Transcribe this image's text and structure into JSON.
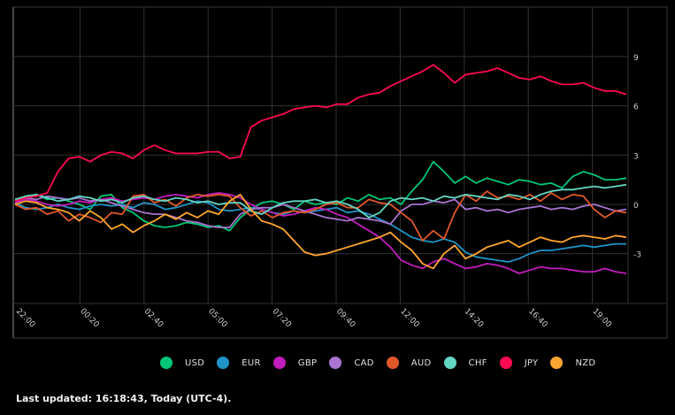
{
  "footer": {
    "last_updated": "Last updated: 16:18:43, Today (UTC-4)."
  },
  "legend": [
    {
      "label": "USD",
      "color": "#00c878"
    },
    {
      "label": "EUR",
      "color": "#1f93c6"
    },
    {
      "label": "GBP",
      "color": "#c21cbc"
    },
    {
      "label": "CAD",
      "color": "#a874d0"
    },
    {
      "label": "AUD",
      "color": "#e0582a"
    },
    {
      "label": "CHF",
      "color": "#63d6c4"
    },
    {
      "label": "JPY",
      "color": "#ff0a50"
    },
    {
      "label": "NZD",
      "color": "#ffa630"
    }
  ],
  "chart_data": {
    "type": "line",
    "title": "",
    "xlabel": "",
    "ylabel": "",
    "x_ticks": [
      "22:00",
      "00:20",
      "02:40",
      "05:00",
      "07:20",
      "09:40",
      "12:00",
      "14:20",
      "16:40",
      "19:00"
    ],
    "y_ticks": [
      9,
      6,
      3,
      0,
      -3
    ],
    "ylim": [
      -6,
      12
    ],
    "grid": true,
    "legend_position": "bottom",
    "x_points": 58,
    "series": [
      {
        "name": "JPY",
        "color": "#ff0a50",
        "values": [
          0.2,
          0.4,
          0.5,
          0.7,
          2.0,
          2.8,
          2.9,
          2.6,
          3.0,
          3.2,
          3.1,
          2.8,
          3.3,
          3.6,
          3.3,
          3.1,
          3.1,
          3.1,
          3.2,
          3.2,
          2.8,
          2.9,
          4.7,
          5.1,
          5.3,
          5.5,
          5.8,
          5.9,
          6.0,
          5.9,
          6.1,
          6.1,
          6.5,
          6.7,
          6.8,
          7.2,
          7.5,
          7.8,
          8.1,
          8.5,
          8.0,
          7.4,
          7.9,
          8.0,
          8.1,
          8.3,
          8.0,
          7.7,
          7.6,
          7.8,
          7.5,
          7.3,
          7.3,
          7.4,
          7.1,
          6.9,
          6.9,
          6.7
        ]
      },
      {
        "name": "USD",
        "color": "#00c878",
        "values": [
          0.2,
          0.5,
          0.6,
          0.3,
          0.4,
          0.2,
          0.0,
          -0.3,
          0.5,
          0.6,
          -0.2,
          -0.5,
          -1.0,
          -1.3,
          -1.4,
          -1.3,
          -1.1,
          -1.2,
          -1.4,
          -1.3,
          -1.6,
          -0.8,
          -0.3,
          0.1,
          0.2,
          0.0,
          -0.3,
          0.2,
          0.0,
          0.1,
          0.0,
          0.4,
          0.2,
          0.6,
          0.3,
          0.4,
          0.0,
          0.8,
          1.5,
          2.6,
          2.0,
          1.3,
          1.7,
          1.3,
          1.6,
          1.4,
          1.2,
          1.5,
          1.4,
          1.2,
          1.3,
          1.0,
          1.7,
          2.0,
          1.8,
          1.5,
          1.5,
          1.6
        ]
      },
      {
        "name": "EUR",
        "color": "#1f93c6",
        "values": [
          0.1,
          -0.2,
          -0.3,
          -0.2,
          0.0,
          -0.2,
          -0.3,
          -0.1,
          0.0,
          -0.1,
          0.0,
          -0.2,
          0.1,
          0.0,
          -0.3,
          -0.2,
          0.0,
          0.2,
          0.1,
          -0.3,
          -0.4,
          -0.3,
          -0.2,
          -0.3,
          -0.5,
          -0.6,
          -0.4,
          -0.5,
          -0.4,
          -0.3,
          -0.2,
          -0.5,
          -0.4,
          -0.6,
          -0.9,
          -1.2,
          -1.6,
          -2.0,
          -2.2,
          -2.3,
          -2.1,
          -2.3,
          -2.9,
          -3.2,
          -3.3,
          -3.4,
          -3.5,
          -3.3,
          -3.0,
          -2.8,
          -2.8,
          -2.7,
          -2.6,
          -2.5,
          -2.6,
          -2.5,
          -2.4,
          -2.4
        ]
      },
      {
        "name": "GBP",
        "color": "#c21cbc",
        "values": [
          0.1,
          0.3,
          0.2,
          0.0,
          -0.1,
          0.0,
          0.2,
          0.1,
          0.3,
          0.4,
          0.2,
          0.3,
          0.4,
          0.3,
          0.5,
          0.6,
          0.5,
          0.4,
          0.6,
          0.7,
          0.6,
          0.4,
          0.0,
          -0.3,
          -0.5,
          -0.7,
          -0.6,
          -0.4,
          -0.2,
          -0.3,
          -0.6,
          -0.8,
          -1.2,
          -1.6,
          -2.0,
          -2.6,
          -3.4,
          -3.7,
          -3.9,
          -3.5,
          -3.3,
          -3.6,
          -3.9,
          -3.8,
          -3.6,
          -3.7,
          -3.9,
          -4.2,
          -4.0,
          -3.8,
          -3.9,
          -3.9,
          -4.0,
          -4.1,
          -4.1,
          -3.9,
          -4.1,
          -4.2
        ]
      },
      {
        "name": "CAD",
        "color": "#a874d0",
        "values": [
          0.2,
          0.4,
          0.3,
          0.5,
          0.4,
          0.3,
          0.4,
          0.2,
          0.3,
          0.1,
          -0.1,
          -0.3,
          -0.5,
          -0.6,
          -0.6,
          -0.8,
          -1.0,
          -1.1,
          -1.3,
          -1.4,
          -1.4,
          -0.6,
          -0.3,
          -0.2,
          -0.2,
          0.0,
          -0.2,
          -0.4,
          -0.6,
          -0.8,
          -0.9,
          -1.0,
          -0.8,
          -0.9,
          -1.0,
          -1.2,
          -0.4,
          0.0,
          0.0,
          0.2,
          0.1,
          0.3,
          -0.3,
          -0.2,
          -0.4,
          -0.3,
          -0.5,
          -0.3,
          -0.2,
          -0.1,
          -0.3,
          -0.2,
          -0.3,
          -0.1,
          0.0,
          -0.2,
          -0.4,
          -0.3
        ]
      },
      {
        "name": "AUD",
        "color": "#e0582a",
        "values": [
          0.0,
          -0.3,
          -0.2,
          -0.6,
          -0.4,
          -1.0,
          -0.6,
          -0.8,
          -1.1,
          -0.5,
          -0.6,
          0.5,
          0.6,
          0.1,
          0.3,
          -0.1,
          0.4,
          0.6,
          0.5,
          0.6,
          0.5,
          -0.2,
          -0.7,
          -0.4,
          -0.8,
          -0.5,
          -0.4,
          -0.5,
          -0.3,
          0.0,
          0.1,
          -0.2,
          -0.2,
          0.3,
          0.1,
          0.0,
          -0.5,
          -1.0,
          -2.2,
          -1.6,
          -2.1,
          -0.5,
          0.6,
          0.2,
          0.8,
          0.4,
          0.5,
          0.3,
          0.6,
          0.2,
          0.7,
          0.3,
          0.6,
          0.5,
          -0.3,
          -0.8,
          -0.4,
          -0.5
        ]
      },
      {
        "name": "CHF",
        "color": "#63d6c4",
        "values": [
          0.3,
          0.5,
          0.6,
          0.4,
          0.2,
          0.3,
          0.5,
          0.4,
          0.2,
          0.3,
          0.1,
          0.4,
          0.5,
          0.3,
          0.2,
          0.4,
          0.3,
          0.1,
          0.2,
          0.0,
          0.1,
          0.1,
          -0.4,
          -0.6,
          -0.2,
          0.1,
          0.2,
          0.2,
          0.3,
          0.1,
          0.2,
          0.0,
          -0.3,
          -0.8,
          -0.5,
          0.2,
          0.4,
          0.3,
          0.4,
          0.2,
          0.5,
          0.4,
          0.6,
          0.5,
          0.4,
          0.3,
          0.6,
          0.5,
          0.3,
          0.6,
          0.8,
          0.9,
          0.9,
          1.0,
          1.1,
          1.0,
          1.1,
          1.2
        ]
      },
      {
        "name": "NZD",
        "color": "#ffa630",
        "values": [
          0.0,
          0.2,
          0.1,
          -0.2,
          -0.3,
          -0.5,
          -1.0,
          -0.4,
          -0.8,
          -1.5,
          -1.2,
          -1.7,
          -1.3,
          -1.0,
          -0.6,
          -0.9,
          -0.5,
          -0.8,
          -0.4,
          -0.6,
          0.2,
          0.6,
          -0.3,
          -1.0,
          -1.2,
          -1.5,
          -2.2,
          -2.9,
          -3.1,
          -3.0,
          -2.8,
          -2.6,
          -2.4,
          -2.2,
          -2.0,
          -1.7,
          -2.3,
          -2.8,
          -3.6,
          -3.9,
          -3.0,
          -2.5,
          -3.3,
          -3.0,
          -2.6,
          -2.4,
          -2.2,
          -2.6,
          -2.3,
          -2.0,
          -2.2,
          -2.3,
          -2.0,
          -1.9,
          -2.0,
          -2.1,
          -1.9,
          -2.0
        ]
      }
    ]
  }
}
